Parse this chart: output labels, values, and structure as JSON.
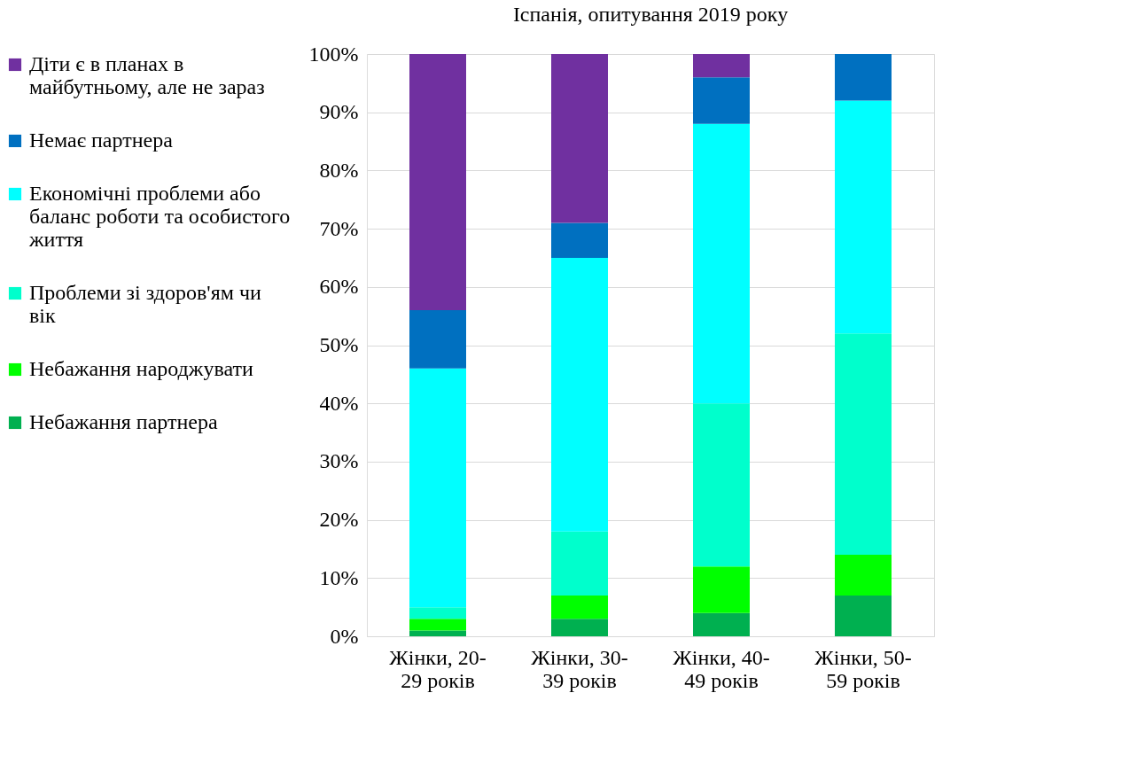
{
  "chart_data": {
    "type": "bar",
    "title": "Іспанія, опитування 2019 року",
    "stacked": true,
    "categories": [
      "Жінки, 20-29 років",
      "Жінки, 30-39 років",
      "Жінки, 40-49 років",
      "Жінки, 50-59 років"
    ],
    "series": [
      {
        "name": "Небажання партнера",
        "color": "#00b050",
        "values": [
          1,
          3,
          4,
          7
        ]
      },
      {
        "name": "Небажання народжувати",
        "color": "#00ff00",
        "values": [
          2,
          4,
          8,
          7
        ]
      },
      {
        "name": "Проблеми зі здоров'ям чи вік",
        "color": "#00ffcc",
        "values": [
          2,
          11,
          28,
          38
        ]
      },
      {
        "name": "Економічні проблеми або баланс роботи та особистого життя",
        "color": "#00ffff",
        "values": [
          41,
          47,
          48,
          40
        ]
      },
      {
        "name": "Немає партнера",
        "color": "#0070c0",
        "values": [
          10,
          6,
          8,
          8
        ]
      },
      {
        "name": "Діти є в планах в майбутньому, але не зараз",
        "color": "#7030a0",
        "values": [
          44,
          29,
          4,
          0
        ]
      }
    ],
    "ylim": [
      0,
      100
    ],
    "yticks": [
      {
        "value": 0,
        "label": "0%"
      },
      {
        "value": 10,
        "label": "10%"
      },
      {
        "value": 20,
        "label": "20%"
      },
      {
        "value": 30,
        "label": "30%"
      },
      {
        "value": 40,
        "label": "40%"
      },
      {
        "value": 50,
        "label": "50%"
      },
      {
        "value": 60,
        "label": "60%"
      },
      {
        "value": 70,
        "label": "70%"
      },
      {
        "value": 80,
        "label": "80%"
      },
      {
        "value": 90,
        "label": "90%"
      },
      {
        "value": 100,
        "label": "100%"
      }
    ],
    "grid": "y",
    "legend": "left"
  }
}
